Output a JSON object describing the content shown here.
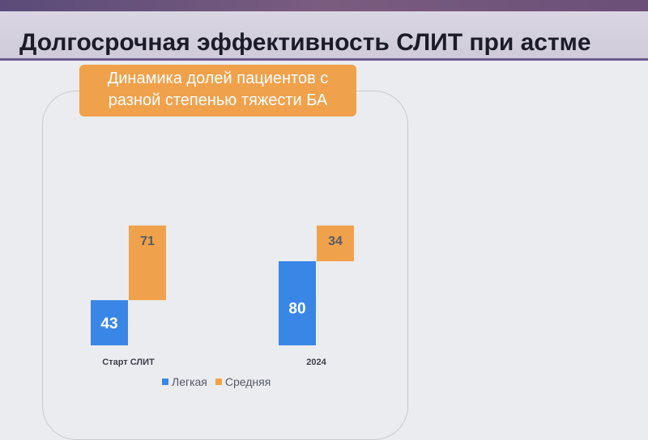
{
  "slide": {
    "title": "Долгосрочная эффективность СЛИТ при астме"
  },
  "chart_heading": {
    "line1": "Динамика долей пациентов с",
    "line2": "разной степенью тяжести БА"
  },
  "colors": {
    "legkaya": "#3a86e6",
    "srednyaya": "#f0a14c",
    "heading_bg": "#f0a14c"
  },
  "chart_data": {
    "type": "bar",
    "stacked": true,
    "categories": [
      "Старт СЛИТ",
      "2024"
    ],
    "series": [
      {
        "name": "Легкая",
        "values": [
          43,
          80
        ]
      },
      {
        "name": "Средняя",
        "values": [
          71,
          34
        ]
      }
    ],
    "title": "Динамика долей пациентов с разной степенью тяжести БА",
    "legend": "bottom"
  }
}
